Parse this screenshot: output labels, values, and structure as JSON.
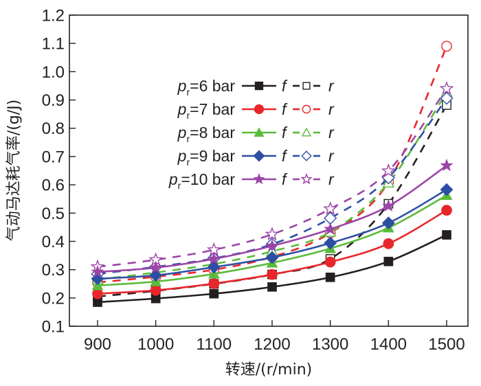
{
  "chart_data": {
    "type": "line",
    "title": "",
    "xlabel": "转速/(r/min)",
    "ylabel": "气动马达耗气率/(g/J)",
    "xlim": [
      850,
      1540
    ],
    "ylim": [
      0.1,
      1.2
    ],
    "x": [
      900,
      1000,
      1100,
      1200,
      1300,
      1400,
      1500
    ],
    "x_ticks": [
      "900",
      "1000",
      "1100",
      "1200",
      "1300",
      "1400",
      "1500"
    ],
    "y_ticks": [
      "0.1",
      "0.2",
      "0.3",
      "0.4",
      "0.5",
      "0.6",
      "0.7",
      "0.8",
      "0.9",
      "1.0",
      "1.1",
      "1.2"
    ],
    "y_tick_values": [
      0.1,
      0.2,
      0.3,
      0.4,
      0.5,
      0.6,
      0.7,
      0.8,
      0.9,
      1.0,
      1.1,
      1.2
    ],
    "grid": false,
    "legend_position": "top-left",
    "legend_f_label": "f",
    "legend_r_label": "r",
    "series": [
      {
        "name": "pr=6 bar",
        "pressure": "6 bar",
        "color": "#231f20",
        "marker": "square",
        "f": [
          0.185,
          0.198,
          0.215,
          0.239,
          0.273,
          0.329,
          0.423
        ],
        "r": [
          0.205,
          0.225,
          0.25,
          0.283,
          0.338,
          0.533,
          0.882
        ]
      },
      {
        "name": "pr=7 bar",
        "pressure": "7 bar",
        "color": "#e8262b",
        "marker": "circle",
        "f": [
          0.215,
          0.227,
          0.251,
          0.283,
          0.327,
          0.392,
          0.51
        ],
        "r": [
          0.255,
          0.275,
          0.3,
          0.345,
          0.43,
          0.61,
          1.09
        ]
      },
      {
        "name": "pr=8 bar",
        "pressure": "8 bar",
        "color": "#5bbb3a",
        "marker": "triangle",
        "f": [
          0.244,
          0.258,
          0.285,
          0.324,
          0.375,
          0.448,
          0.563
        ],
        "r": [
          0.265,
          0.29,
          0.32,
          0.365,
          0.433,
          0.607,
          0.928
        ]
      },
      {
        "name": "pr=9 bar",
        "pressure": "9 bar",
        "color": "#2d4fa3",
        "marker": "diamond",
        "f": [
          0.268,
          0.28,
          0.309,
          0.343,
          0.394,
          0.465,
          0.583
        ],
        "r": [
          0.285,
          0.31,
          0.34,
          0.39,
          0.482,
          0.625,
          0.906
        ]
      },
      {
        "name": "pr=10 bar",
        "pressure": "10 bar",
        "color": "#9b45a6",
        "marker": "star",
        "f": [
          0.292,
          0.307,
          0.338,
          0.384,
          0.443,
          0.525,
          0.668
        ],
        "r": [
          0.31,
          0.335,
          0.37,
          0.425,
          0.515,
          0.649,
          0.94
        ]
      }
    ]
  }
}
